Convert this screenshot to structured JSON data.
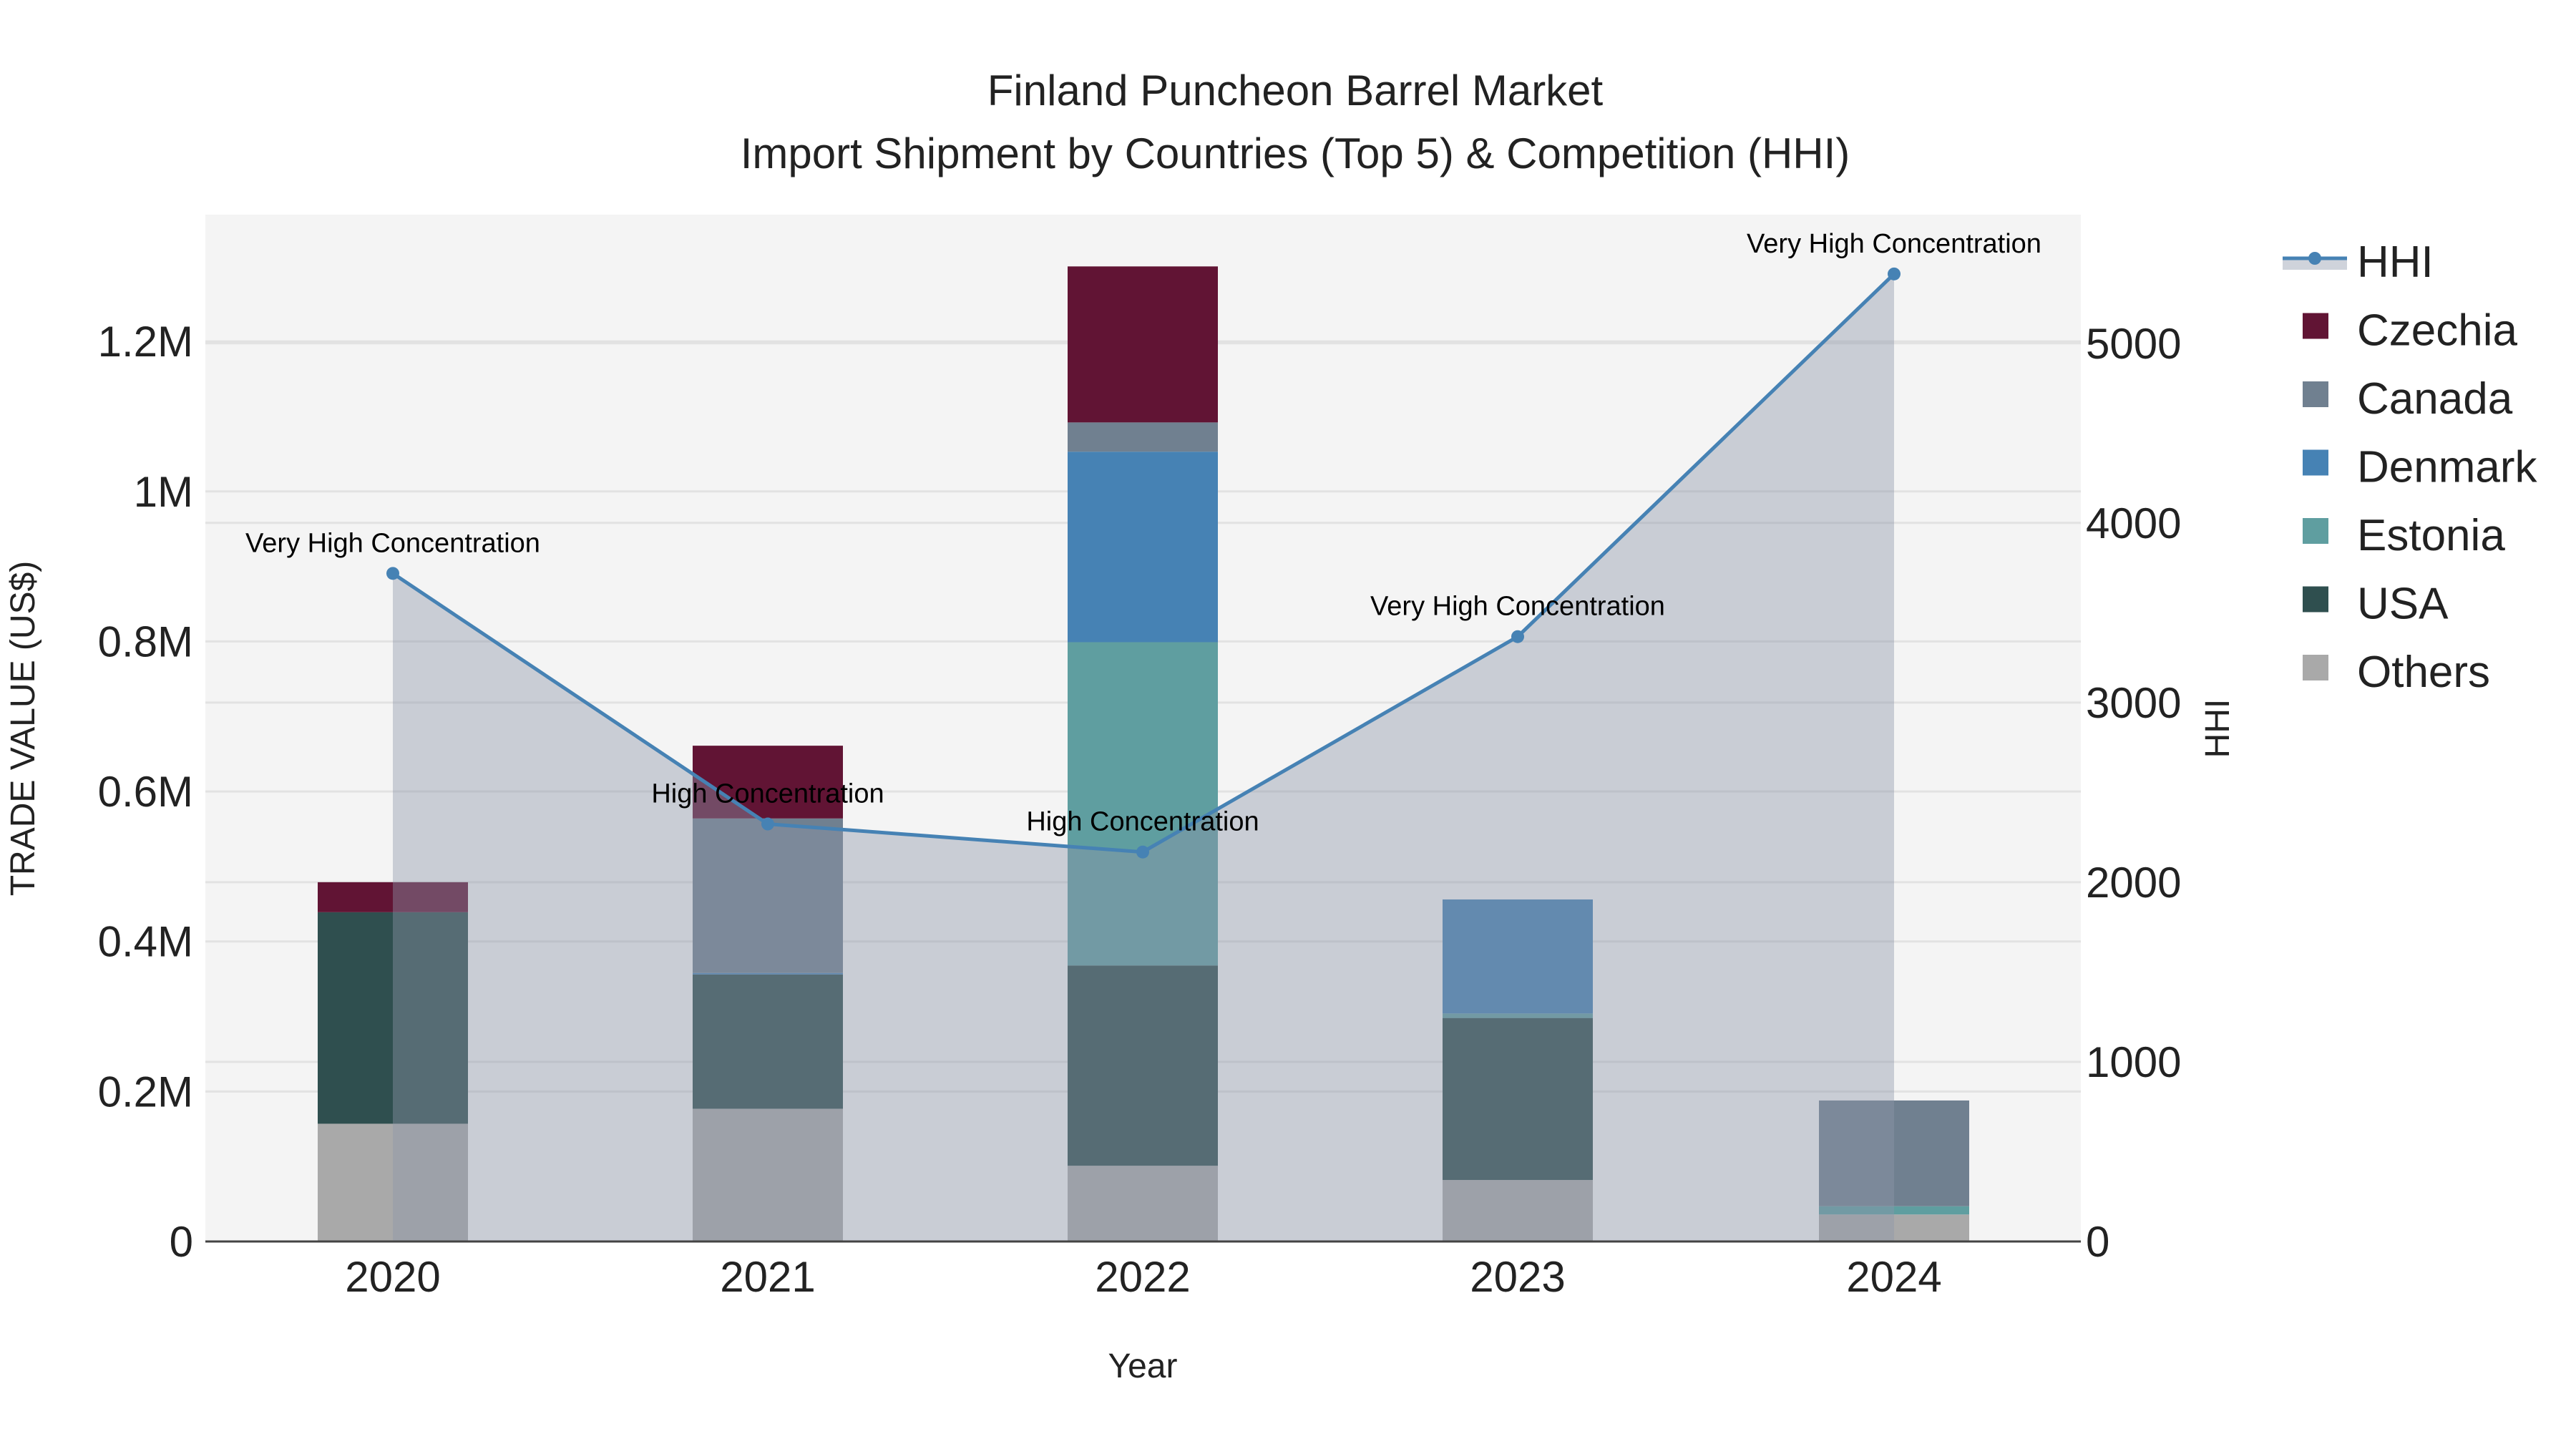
{
  "chart_data": {
    "type": "bar",
    "title": "Finland Puncheon Barrel Market",
    "subtitle": "Import Shipment by Countries (Top 5) & Competition (HHI)",
    "xlabel": "Year",
    "ylabel": "TRADE VALUE (US$)",
    "y2label": "HHI",
    "categories": [
      "2020",
      "2021",
      "2022",
      "2023",
      "2024"
    ],
    "stack_order": "bottom-to-top",
    "series": [
      {
        "name": "Others",
        "color": "#A9A9A9",
        "values": [
          157000,
          177000,
          101000,
          82000,
          36000
        ]
      },
      {
        "name": "USA",
        "color": "#2F4F4F",
        "values": [
          282000,
          179000,
          267000,
          216000,
          0
        ]
      },
      {
        "name": "Estonia",
        "color": "#5F9EA0",
        "values": [
          0,
          0,
          431000,
          6000,
          11000
        ]
      },
      {
        "name": "Denmark",
        "color": "#4682B4",
        "values": [
          0,
          2000,
          254000,
          152000,
          0
        ]
      },
      {
        "name": "Canada",
        "color": "#708090",
        "values": [
          0,
          206000,
          39000,
          0,
          141000
        ]
      },
      {
        "name": "Czechia",
        "color": "#611434",
        "values": [
          40000,
          97000,
          208000,
          0,
          0
        ]
      }
    ],
    "hhi": {
      "name": "HHI",
      "color": "#4682B4",
      "values": [
        3719,
        2324,
        2168,
        3367,
        5386
      ],
      "annotations": [
        "Very High Concentration",
        "High Concentration",
        "High Concentration",
        "Very High Concentration",
        "Very High Concentration"
      ]
    },
    "ylim": [
      0,
      1369000
    ],
    "y2lim": [
      0,
      5716
    ],
    "yticks": [
      {
        "v": 0,
        "label": "0"
      },
      {
        "v": 200000,
        "label": "0.2M"
      },
      {
        "v": 400000,
        "label": "0.4M"
      },
      {
        "v": 600000,
        "label": "0.6M"
      },
      {
        "v": 800000,
        "label": "0.8M"
      },
      {
        "v": 1000000,
        "label": "1M"
      },
      {
        "v": 1200000,
        "label": "1.2M"
      }
    ],
    "y2ticks": [
      {
        "v": 0,
        "label": "0"
      },
      {
        "v": 1000,
        "label": "1000"
      },
      {
        "v": 2000,
        "label": "2000"
      },
      {
        "v": 3000,
        "label": "3000"
      },
      {
        "v": 4000,
        "label": "4000"
      },
      {
        "v": 5000,
        "label": "5000"
      }
    ],
    "legend": [
      "HHI",
      "Czechia",
      "Canada",
      "Denmark",
      "Estonia",
      "USA",
      "Others"
    ],
    "legend_position": "right",
    "grid": true
  }
}
